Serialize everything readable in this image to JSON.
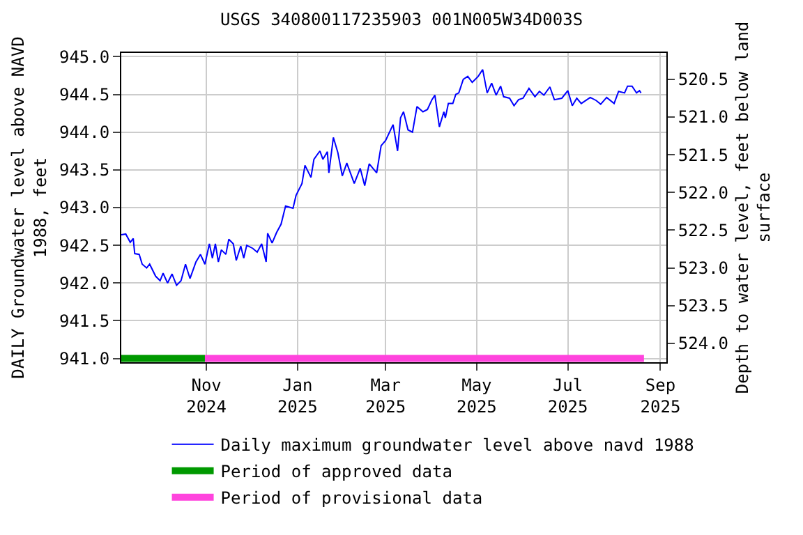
{
  "chart_data": {
    "type": "line",
    "title": "USGS 340800117235903 001N005W34D003S",
    "ylabel": "DAILY Groundwater level above NAVD\n1988, feet",
    "y2label": "Depth to water level, feet below land\nsurface",
    "xlim": [
      "2024-09-05",
      "2025-09-05"
    ],
    "xticks": [
      {
        "value": "2024-11-01",
        "label": "Nov\n2024"
      },
      {
        "value": "2025-01-01",
        "label": "Jan\n2025"
      },
      {
        "value": "2025-03-01",
        "label": "Mar\n2025"
      },
      {
        "value": "2025-05-01",
        "label": "May\n2025"
      },
      {
        "value": "2025-07-01",
        "label": "Jul\n2025"
      },
      {
        "value": "2025-09-01",
        "label": "Sep\n2025"
      }
    ],
    "ylim": [
      940.95,
      945.05
    ],
    "yticks": [
      {
        "value": 941,
        "label": "941.0"
      },
      {
        "value": 941.5,
        "label": "941.5"
      },
      {
        "value": 942,
        "label": "942.0"
      },
      {
        "value": 942.5,
        "label": "942.5"
      },
      {
        "value": 943,
        "label": "943.0"
      },
      {
        "value": 943.5,
        "label": "943.5"
      },
      {
        "value": 944,
        "label": "944.0"
      },
      {
        "value": 944.5,
        "label": "944.5"
      },
      {
        "value": 945,
        "label": "945.0"
      }
    ],
    "y2lim": [
      524.25,
      520.15
    ],
    "y2ticks": [
      520.5,
      {
        "value": 521,
        "label": "521.0"
      },
      521.5,
      {
        "value": 522,
        "label": "522.0"
      },
      522.5,
      {
        "value": 523,
        "label": "523.0"
      },
      523.5,
      {
        "value": 524,
        "label": "524.0"
      }
    ],
    "grid": true,
    "legend": "bottom",
    "series": [
      {
        "name": "Daily maximum groundwater level above navd 1988",
        "color": "#0000ff",
        "x": [
          "2024-09-05",
          "2024-09-08",
          "2024-09-11",
          "2024-09-13",
          "2024-09-14",
          "2024-09-17",
          "2024-09-19",
          "2024-09-22",
          "2024-09-24",
          "2024-09-28",
          "2024-10-01",
          "2024-10-03",
          "2024-10-06",
          "2024-10-09",
          "2024-10-12",
          "2024-10-15",
          "2024-10-18",
          "2024-10-21",
          "2024-10-25",
          "2024-10-28",
          "2024-10-31",
          "2024-11-03",
          "2024-11-05",
          "2024-11-07",
          "2024-11-09",
          "2024-11-11",
          "2024-11-14",
          "2024-11-16",
          "2024-11-19",
          "2024-11-21",
          "2024-11-24",
          "2024-11-26",
          "2024-11-28",
          "2024-12-02",
          "2024-12-05",
          "2024-12-08",
          "2024-12-11",
          "2024-12-12",
          "2024-12-15",
          "2024-12-18",
          "2024-12-21",
          "2024-12-24",
          "2024-12-29",
          "2024-12-31",
          "2025-01-04",
          "2025-01-06",
          "2025-01-10",
          "2025-01-12",
          "2025-01-16",
          "2025-01-18",
          "2025-01-21",
          "2025-01-22",
          "2025-01-25",
          "2025-01-28",
          "2025-01-31",
          "2025-02-03",
          "2025-02-08",
          "2025-02-12",
          "2025-02-15",
          "2025-02-18",
          "2025-02-23",
          "2025-02-26",
          "2025-03-01",
          "2025-03-06",
          "2025-03-09",
          "2025-03-11",
          "2025-03-13",
          "2025-03-16",
          "2025-03-19",
          "2025-03-22",
          "2025-03-26",
          "2025-03-29",
          "2025-04-01",
          "2025-04-03",
          "2025-04-06",
          "2025-04-09",
          "2025-04-10",
          "2025-04-12",
          "2025-04-15",
          "2025-04-17",
          "2025-04-19",
          "2025-04-22",
          "2025-04-25",
          "2025-04-28",
          "2025-05-02",
          "2025-05-05",
          "2025-05-08",
          "2025-05-11",
          "2025-05-14",
          "2025-05-17",
          "2025-05-19",
          "2025-05-23",
          "2025-05-26",
          "2025-05-29",
          "2025-06-01",
          "2025-06-05",
          "2025-06-09",
          "2025-06-12",
          "2025-06-15",
          "2025-06-19",
          "2025-06-22",
          "2025-06-27",
          "2025-07-01",
          "2025-07-04",
          "2025-07-07",
          "2025-07-10",
          "2025-07-16",
          "2025-07-20",
          "2025-07-23",
          "2025-07-27",
          "2025-08-01",
          "2025-08-04",
          "2025-08-08",
          "2025-08-10",
          "2025-08-13",
          "2025-08-16",
          "2025-08-18",
          "2025-08-19"
        ],
        "values": [
          942.64,
          942.65,
          942.54,
          942.59,
          942.39,
          942.38,
          942.25,
          942.2,
          942.25,
          942.09,
          942.03,
          942.13,
          942.0,
          942.12,
          941.97,
          942.03,
          942.25,
          942.06,
          942.28,
          942.38,
          942.25,
          942.52,
          942.33,
          942.52,
          942.28,
          942.44,
          942.38,
          942.58,
          942.52,
          942.3,
          942.49,
          942.33,
          942.5,
          942.46,
          942.41,
          942.52,
          942.28,
          942.66,
          942.53,
          942.67,
          942.78,
          943.02,
          942.99,
          943.16,
          943.32,
          943.56,
          943.4,
          943.64,
          943.75,
          943.64,
          943.74,
          943.46,
          943.93,
          943.73,
          943.42,
          943.59,
          943.32,
          943.52,
          943.29,
          943.58,
          943.46,
          943.82,
          943.89,
          944.1,
          943.75,
          944.19,
          944.27,
          944.03,
          944.0,
          944.34,
          944.27,
          944.3,
          944.43,
          944.49,
          944.07,
          944.27,
          944.19,
          944.38,
          944.38,
          944.5,
          944.52,
          944.7,
          944.74,
          944.66,
          944.74,
          944.83,
          944.52,
          944.65,
          944.49,
          944.61,
          944.47,
          944.45,
          944.35,
          944.43,
          944.45,
          944.58,
          944.47,
          944.54,
          944.49,
          944.6,
          944.43,
          944.45,
          944.55,
          944.35,
          944.45,
          944.38,
          944.46,
          944.42,
          944.37,
          944.46,
          944.38,
          944.54,
          944.52,
          944.61,
          944.61,
          944.52,
          944.55,
          944.52
        ]
      },
      {
        "name": "Period of approved data",
        "color": "#009900",
        "x": [
          "2024-09-05",
          "2024-10-31"
        ],
        "values": [
          941,
          941
        ]
      },
      {
        "name": "Period of provisional data",
        "color": "#ff44dd",
        "x": [
          "2024-10-31",
          "2025-08-21"
        ],
        "values": [
          941,
          941
        ]
      }
    ]
  }
}
